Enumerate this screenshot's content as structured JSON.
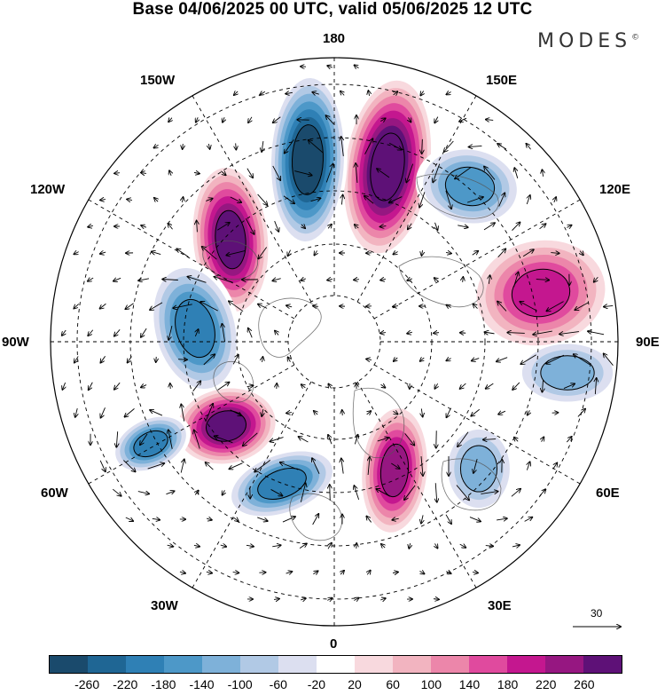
{
  "title": "Base 04/06/2025 00 UTC, valid 05/06/2025 12 UTC",
  "brand": "MODES",
  "brand_mark": "©",
  "longitude_labels": [
    "180",
    "150E",
    "120E",
    "90E",
    "60E",
    "30E",
    "0",
    "30W",
    "60W",
    "90W",
    "120W",
    "150W"
  ],
  "reference_vector": {
    "label": "30",
    "value": 30
  },
  "colorbar": {
    "ticks": [
      "-260",
      "-220",
      "-180",
      "-140",
      "-100",
      "-60",
      "-20",
      "20",
      "60",
      "100",
      "140",
      "180",
      "220",
      "260"
    ],
    "colors": [
      "#1a4a6c",
      "#1f6694",
      "#2f80b5",
      "#4d98c8",
      "#7eb1d9",
      "#b1c9e5",
      "#dcdff0",
      "#ffffff",
      "#f8d9de",
      "#f2b4c0",
      "#ec86aa",
      "#e04a9e",
      "#c4178f",
      "#961781",
      "#5e1177"
    ]
  },
  "anomaly_centers": [
    {
      "lon_label": "150E",
      "sign": "positive",
      "value": 260
    },
    {
      "lon_label": "180",
      "sign": "negative",
      "value": -260
    },
    {
      "lon_label": "120W",
      "sign": "positive",
      "value": 220
    },
    {
      "lon_label": "90W",
      "sign": "negative",
      "value": -180
    },
    {
      "lon_label": "60W",
      "sign": "positive",
      "value": 220
    },
    {
      "lon_label": "60W",
      "sign": "negative",
      "value": -180
    },
    {
      "lon_label": "30W",
      "sign": "negative",
      "value": -180
    },
    {
      "lon_label": "30E",
      "sign": "positive",
      "value": 180
    },
    {
      "lon_label": "60E",
      "sign": "negative",
      "value": -100
    },
    {
      "lon_label": "90E",
      "sign": "negative",
      "value": -100
    },
    {
      "lon_label": "120E",
      "sign": "positive",
      "value": 140
    },
    {
      "lon_label": "120E",
      "sign": "negative",
      "value": -140
    }
  ]
}
